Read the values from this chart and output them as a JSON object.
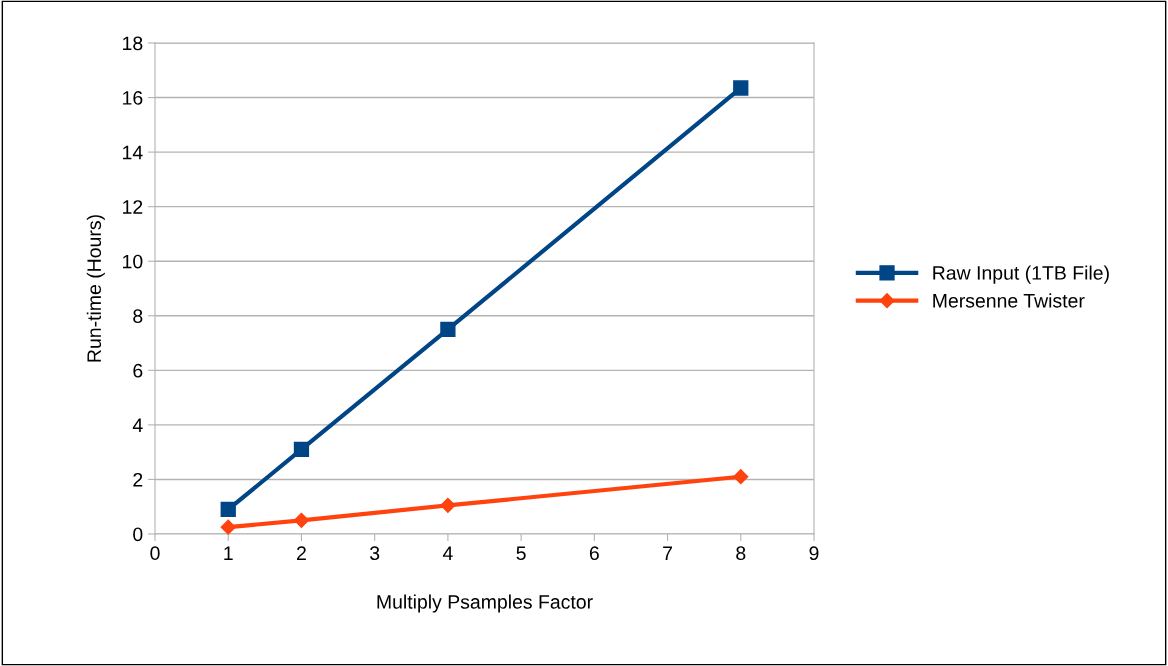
{
  "chart_data": {
    "type": "line",
    "xlabel": "Multiply Psamples Factor",
    "ylabel": "Run-time (Hours)",
    "x": [
      1,
      2,
      4,
      8
    ],
    "series": [
      {
        "name": "Raw Input (1TB File)",
        "color": "#004586",
        "marker": "square",
        "values": [
          0.9,
          3.1,
          7.5,
          16.35
        ]
      },
      {
        "name": "Mersenne Twister",
        "color": "#ff420e",
        "marker": "diamond",
        "values": [
          0.25,
          0.5,
          1.05,
          2.1
        ]
      }
    ],
    "xlim": [
      0,
      9
    ],
    "xticks": [
      0,
      1,
      2,
      3,
      4,
      5,
      6,
      7,
      8,
      9
    ],
    "ylim": [
      0,
      18
    ],
    "yticks": [
      0,
      2,
      4,
      6,
      8,
      10,
      12,
      14,
      16,
      18
    ],
    "grid": "y",
    "legend": "right",
    "line_style": "solid"
  }
}
